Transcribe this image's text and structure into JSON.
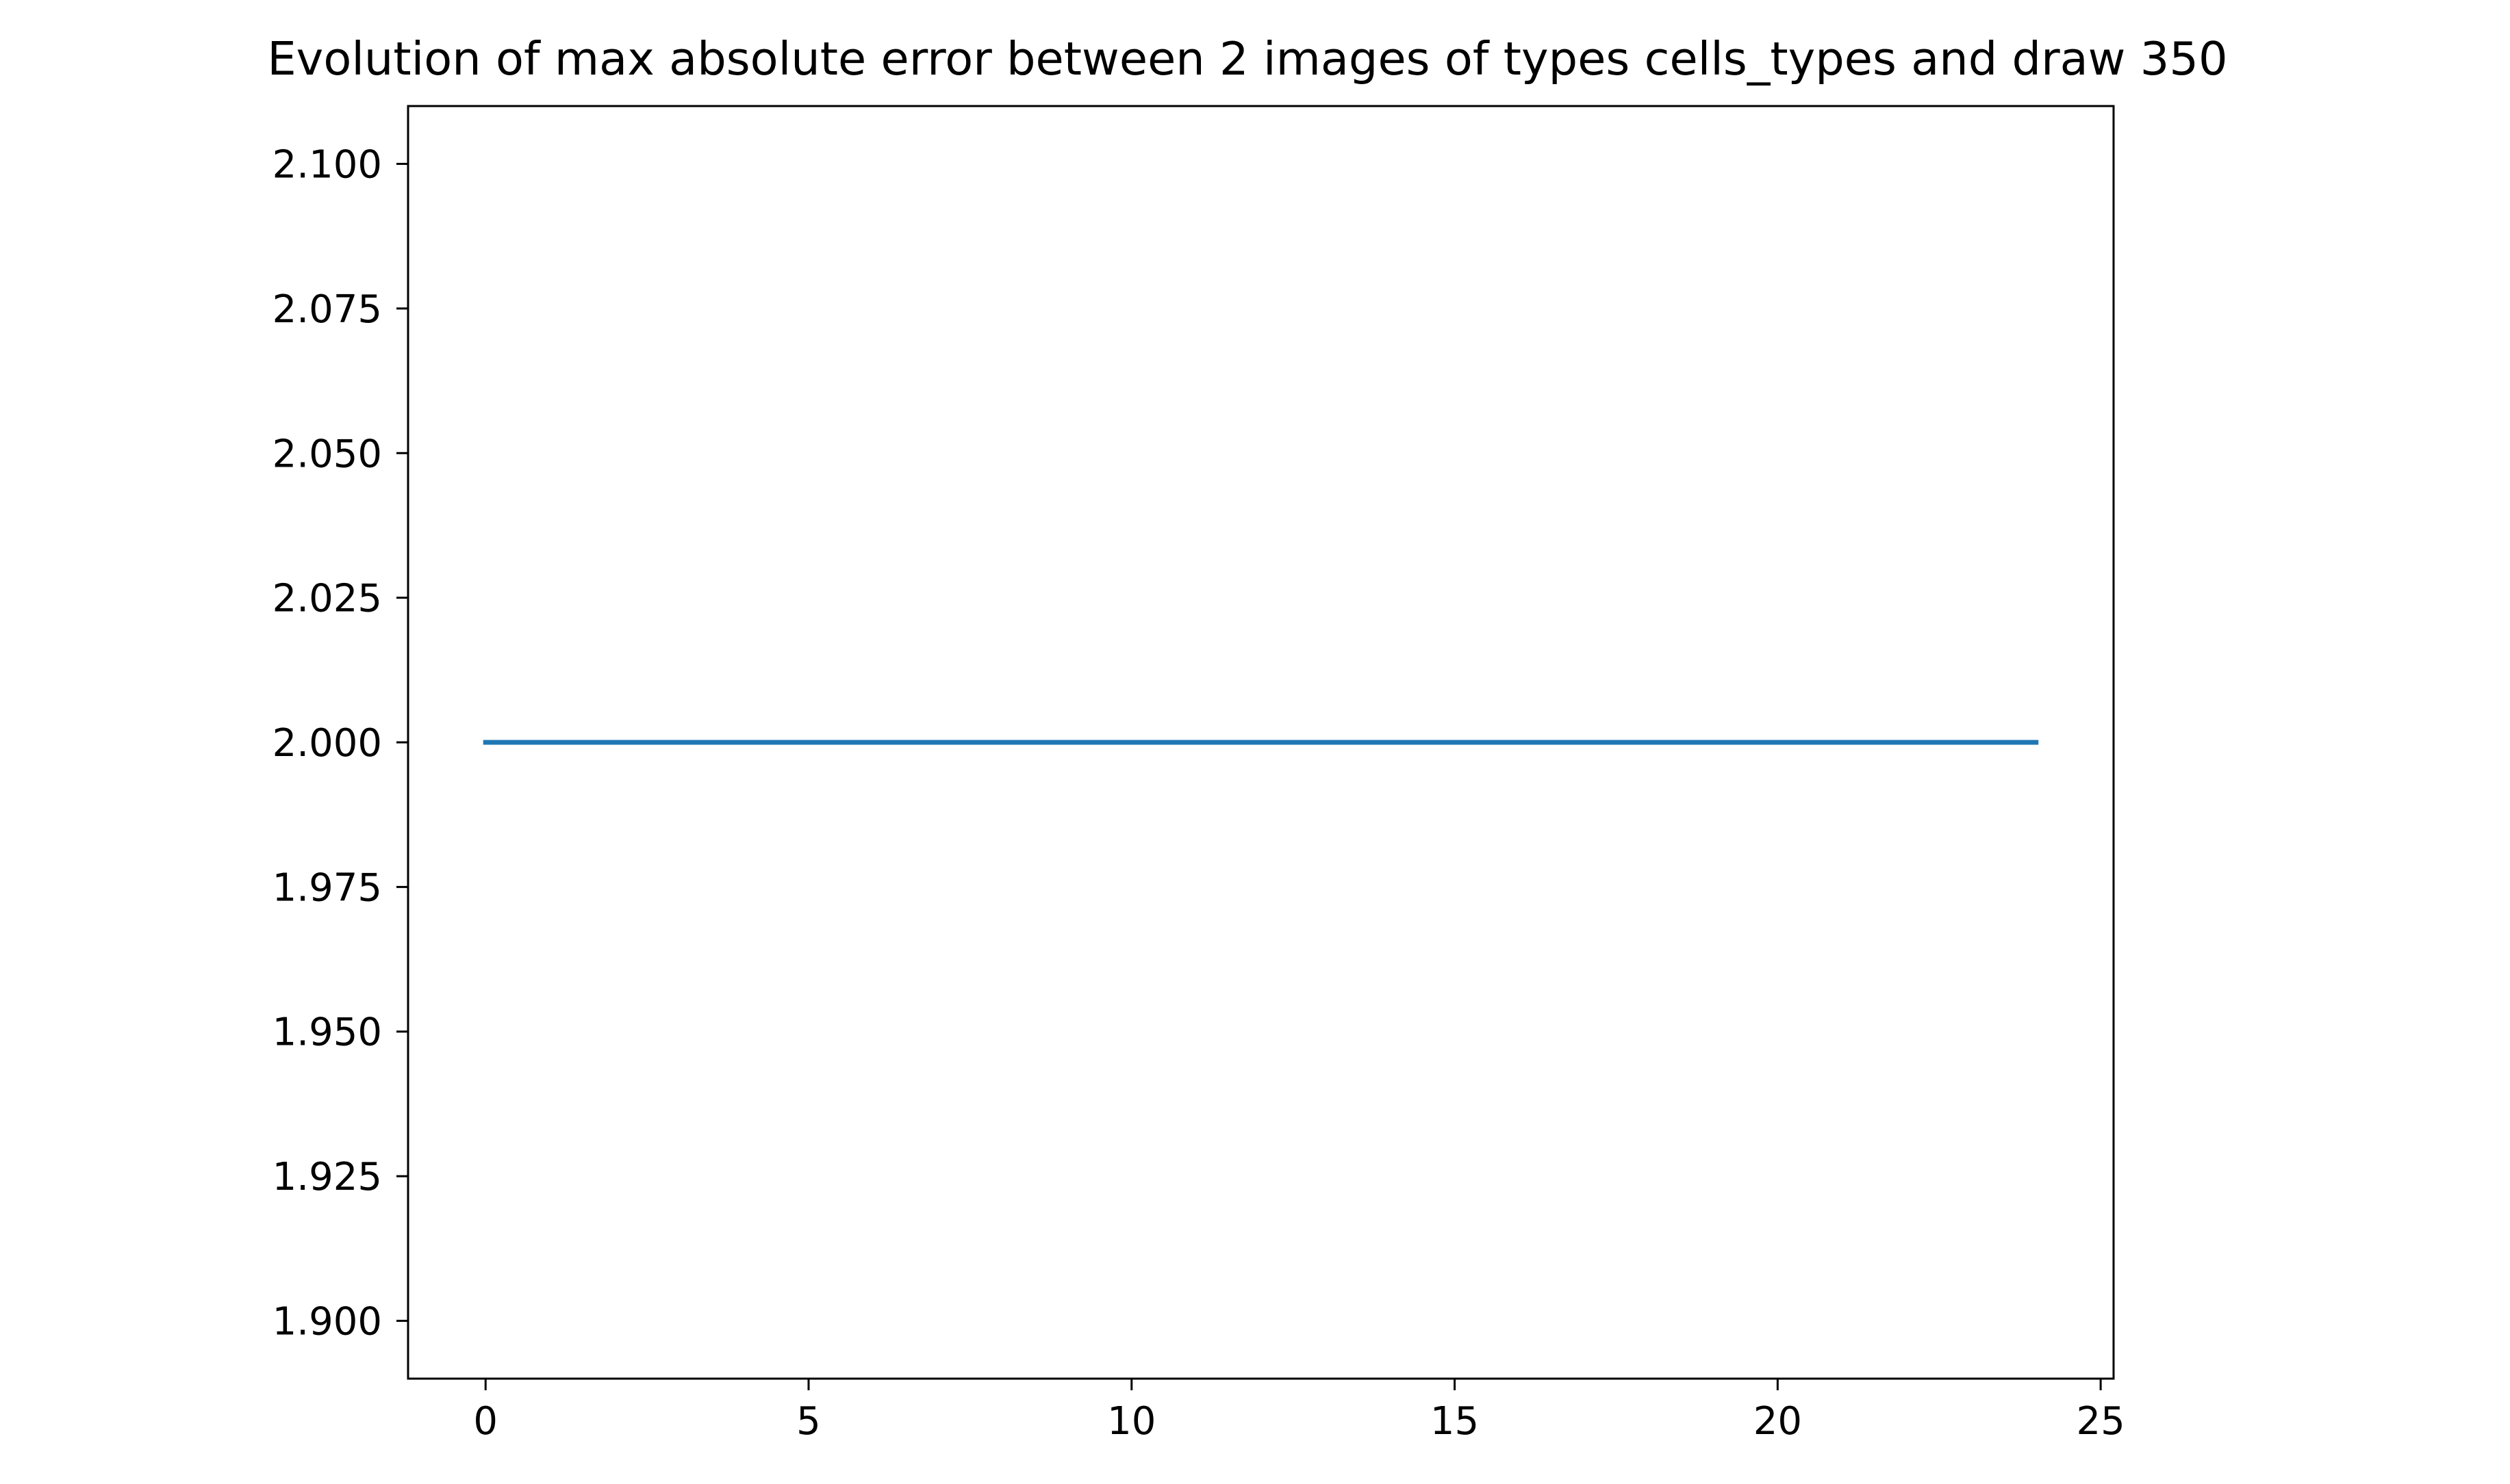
{
  "chart_data": {
    "type": "line",
    "title": "Evolution of max absolute error between 2 images of types cells_types and draw 350",
    "xlabel": "",
    "ylabel": "",
    "xlim": [
      -1.2,
      25.2
    ],
    "ylim": [
      1.89,
      2.11
    ],
    "xticks": [
      0,
      5,
      10,
      15,
      20,
      25
    ],
    "xtick_labels": [
      "0",
      "5",
      "10",
      "15",
      "20",
      "25"
    ],
    "yticks": [
      1.9,
      1.925,
      1.95,
      1.975,
      2.0,
      2.025,
      2.05,
      2.075,
      2.1
    ],
    "ytick_labels": [
      "1.900",
      "1.925",
      "1.950",
      "1.975",
      "2.000",
      "2.025",
      "2.050",
      "2.075",
      "2.100"
    ],
    "grid": false,
    "series": [
      {
        "color": "#1f77b4",
        "x": [
          0,
          1,
          2,
          3,
          4,
          5,
          6,
          7,
          8,
          9,
          10,
          11,
          12,
          13,
          14,
          15,
          16,
          17,
          18,
          19,
          20,
          21,
          22,
          23,
          24
        ],
        "y": [
          2,
          2,
          2,
          2,
          2,
          2,
          2,
          2,
          2,
          2,
          2,
          2,
          2,
          2,
          2,
          2,
          2,
          2,
          2,
          2,
          2,
          2,
          2,
          2,
          2
        ]
      }
    ]
  }
}
